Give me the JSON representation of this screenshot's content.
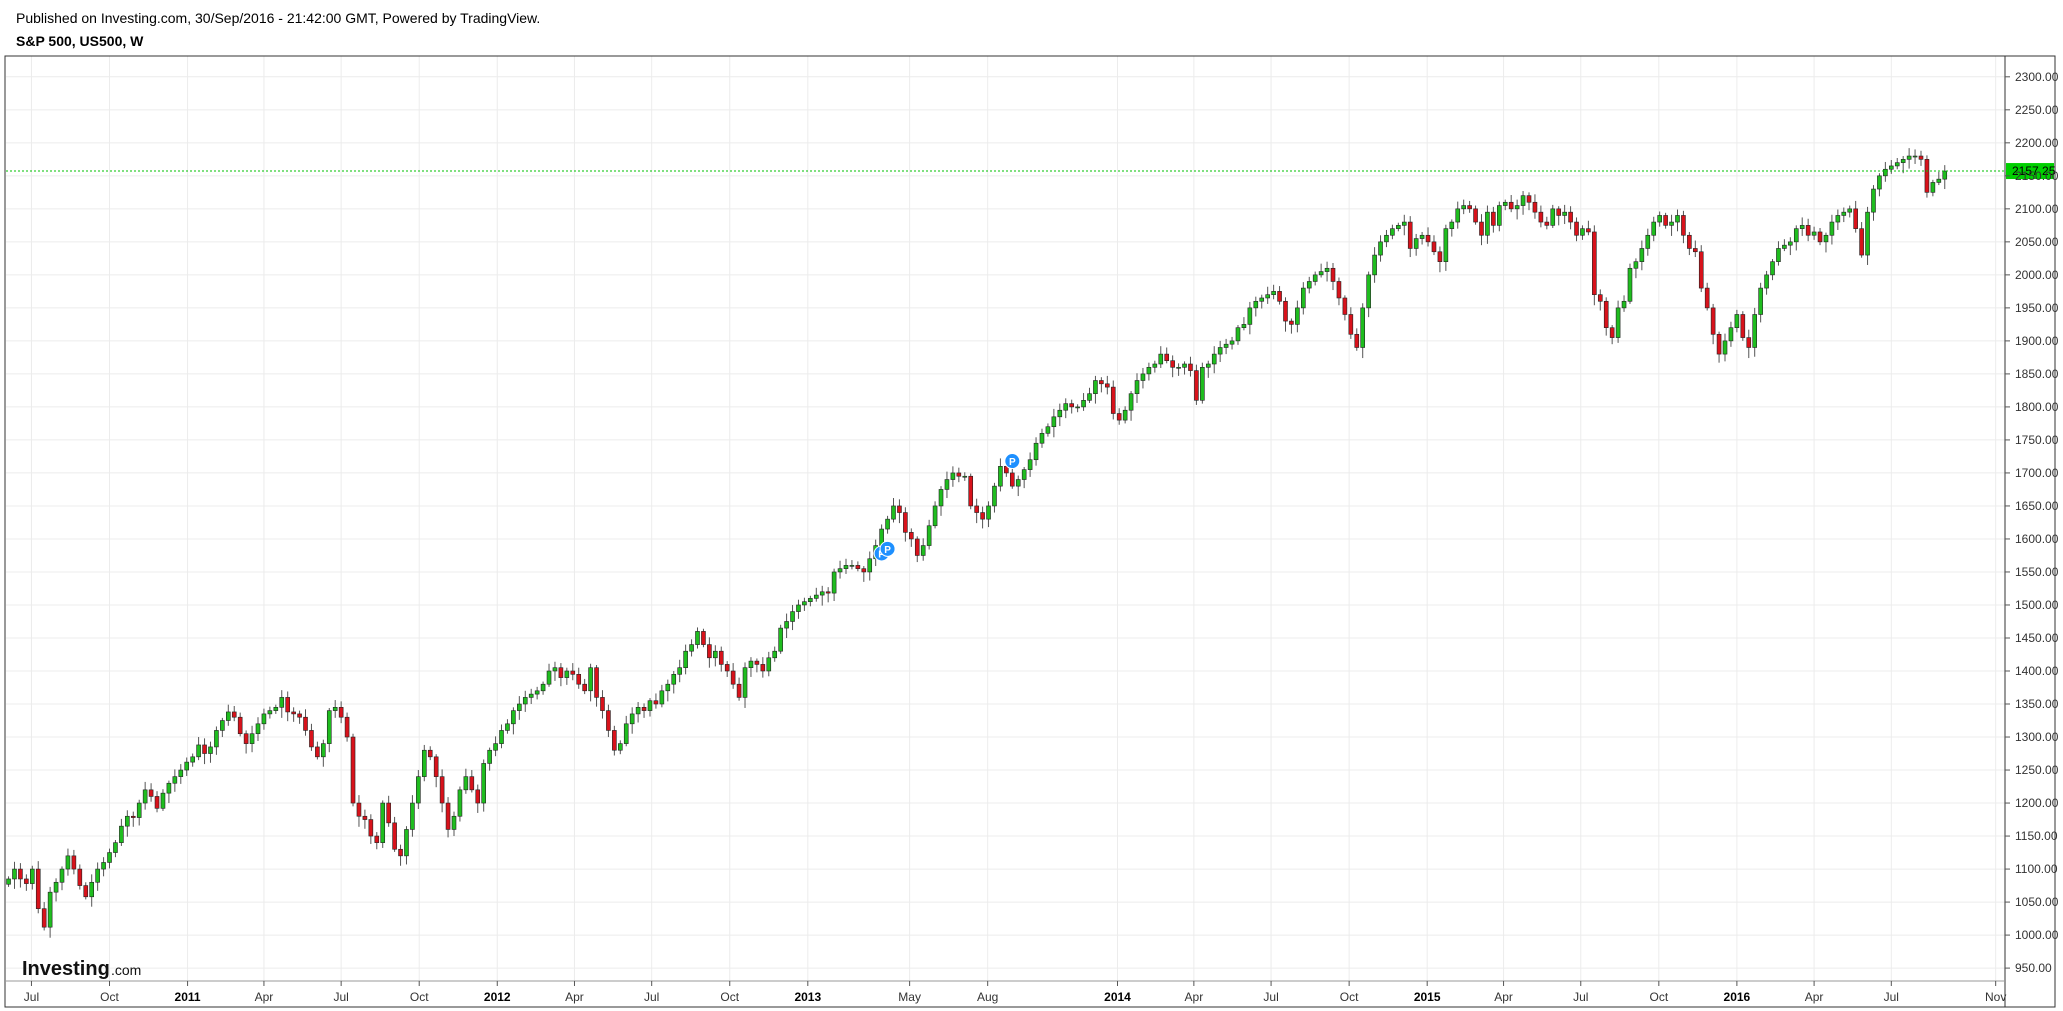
{
  "header": {
    "publish_line": "Published on Investing.com, 30/Sep/2016 - 21:42:00 GMT, Powered by TradingView.",
    "chart_title": "S&P 500, US500, W"
  },
  "logo": {
    "brand": "Investing",
    "suffix": ".com"
  },
  "colors": {
    "up": "#1fbd1f",
    "down": "#d8121b",
    "last_price_line": "#00c000",
    "last_price_label_bg": "#00d000",
    "marker": "#1e90ff",
    "grid": "#ececec",
    "frame": "#333333"
  },
  "chart_data": {
    "type": "candlestick",
    "title": "S&P 500, US500, W",
    "interval": "weekly",
    "ylim": [
      935,
      2330
    ],
    "y_ticks": [
      950,
      1000,
      1050,
      1100,
      1150,
      1200,
      1250,
      1300,
      1350,
      1400,
      1450,
      1500,
      1550,
      1600,
      1650,
      1700,
      1750,
      1800,
      1850,
      1900,
      1950,
      2000,
      2050,
      2100,
      2150,
      2200,
      2250,
      2300
    ],
    "y_tick_labels": [
      "950.00",
      "1000.00",
      "1050.00",
      "1100.00",
      "1150.00",
      "1200.00",
      "1250.00",
      "1300.00",
      "1350.00",
      "1400.00",
      "1450.00",
      "1500.00",
      "1550.00",
      "1600.00",
      "1650.00",
      "1700.00",
      "1750.00",
      "1800.00",
      "1850.00",
      "1900.00",
      "1950.00",
      "2000.00",
      "2050.00",
      "2100.00",
      "2150.00",
      "2200.00",
      "2250.00",
      "2300.00"
    ],
    "x_range": [
      "2010-06-01",
      "2016-11-12"
    ],
    "x_ticks": [
      {
        "date": "2010-07-01",
        "label": "Jul",
        "year": false
      },
      {
        "date": "2010-10-01",
        "label": "Oct",
        "year": false
      },
      {
        "date": "2011-01-01",
        "label": "2011",
        "year": true
      },
      {
        "date": "2011-04-01",
        "label": "Apr",
        "year": false
      },
      {
        "date": "2011-07-01",
        "label": "Jul",
        "year": false
      },
      {
        "date": "2011-10-01",
        "label": "Oct",
        "year": false
      },
      {
        "date": "2012-01-01",
        "label": "2012",
        "year": true
      },
      {
        "date": "2012-04-01",
        "label": "Apr",
        "year": false
      },
      {
        "date": "2012-07-01",
        "label": "Jul",
        "year": false
      },
      {
        "date": "2012-10-01",
        "label": "Oct",
        "year": false
      },
      {
        "date": "2013-01-01",
        "label": "2013",
        "year": true
      },
      {
        "date": "2013-05-01",
        "label": "May",
        "year": false
      },
      {
        "date": "2013-08-01",
        "label": "Aug",
        "year": false
      },
      {
        "date": "2014-01-01",
        "label": "2014",
        "year": true
      },
      {
        "date": "2014-04-01",
        "label": "Apr",
        "year": false
      },
      {
        "date": "2014-07-01",
        "label": "Jul",
        "year": false
      },
      {
        "date": "2014-10-01",
        "label": "Oct",
        "year": false
      },
      {
        "date": "2015-01-01",
        "label": "2015",
        "year": true
      },
      {
        "date": "2015-04-01",
        "label": "Apr",
        "year": false
      },
      {
        "date": "2015-07-01",
        "label": "Jul",
        "year": false
      },
      {
        "date": "2015-10-01",
        "label": "Oct",
        "year": false
      },
      {
        "date": "2016-01-01",
        "label": "2016",
        "year": true
      },
      {
        "date": "2016-04-01",
        "label": "Apr",
        "year": false
      },
      {
        "date": "2016-07-01",
        "label": "Jul",
        "year": false
      },
      {
        "date": "2016-11-01",
        "label": "Nov",
        "year": false
      }
    ],
    "series_start": "2010-06-04",
    "interval_days": 7,
    "closes": [
      1085,
      1100,
      1085,
      1078,
      1100,
      1040,
      1012,
      1065,
      1080,
      1100,
      1120,
      1100,
      1075,
      1058,
      1080,
      1100,
      1110,
      1125,
      1140,
      1165,
      1180,
      1178,
      1200,
      1220,
      1210,
      1192,
      1215,
      1230,
      1240,
      1250,
      1262,
      1270,
      1288,
      1275,
      1285,
      1310,
      1325,
      1338,
      1330,
      1305,
      1290,
      1305,
      1320,
      1335,
      1340,
      1345,
      1360,
      1338,
      1335,
      1330,
      1310,
      1285,
      1270,
      1290,
      1340,
      1345,
      1330,
      1300,
      1200,
      1180,
      1175,
      1150,
      1140,
      1200,
      1170,
      1130,
      1120,
      1160,
      1200,
      1240,
      1280,
      1270,
      1240,
      1200,
      1160,
      1180,
      1220,
      1240,
      1220,
      1200,
      1260,
      1280,
      1290,
      1310,
      1320,
      1340,
      1350,
      1360,
      1365,
      1370,
      1380,
      1400,
      1405,
      1390,
      1400,
      1395,
      1380,
      1370,
      1405,
      1360,
      1340,
      1310,
      1280,
      1290,
      1320,
      1335,
      1345,
      1340,
      1355,
      1350,
      1370,
      1380,
      1395,
      1405,
      1430,
      1440,
      1460,
      1440,
      1420,
      1430,
      1410,
      1400,
      1380,
      1360,
      1405,
      1415,
      1410,
      1400,
      1420,
      1430,
      1465,
      1475,
      1490,
      1500,
      1505,
      1510,
      1515,
      1520,
      1518,
      1550,
      1555,
      1560,
      1560,
      1555,
      1550,
      1570,
      1590,
      1615,
      1630,
      1650,
      1640,
      1610,
      1600,
      1575,
      1590,
      1620,
      1650,
      1675,
      1690,
      1700,
      1695,
      1695,
      1650,
      1640,
      1630,
      1650,
      1680,
      1710,
      1700,
      1680,
      1690,
      1705,
      1720,
      1745,
      1760,
      1770,
      1785,
      1795,
      1805,
      1800,
      1800,
      1810,
      1820,
      1840,
      1835,
      1830,
      1790,
      1780,
      1795,
      1820,
      1840,
      1850,
      1860,
      1865,
      1880,
      1870,
      1860,
      1860,
      1865,
      1855,
      1810,
      1860,
      1865,
      1880,
      1890,
      1895,
      1900,
      1920,
      1925,
      1950,
      1960,
      1965,
      1970,
      1975,
      1960,
      1930,
      1925,
      1950,
      1980,
      1990,
      2000,
      2005,
      2010,
      1990,
      1965,
      1940,
      1910,
      1890,
      1950,
      2000,
      2030,
      2050,
      2060,
      2070,
      2075,
      2080,
      2040,
      2055,
      2060,
      2050,
      2035,
      2020,
      2070,
      2080,
      2100,
      2105,
      2100,
      2080,
      2060,
      2095,
      2075,
      2105,
      2110,
      2100,
      2105,
      2120,
      2110,
      2095,
      2080,
      2075,
      2100,
      2090,
      2095,
      2080,
      2060,
      2070,
      2065,
      1970,
      1960,
      1920,
      1905,
      1950,
      1960,
      2010,
      2020,
      2040,
      2060,
      2080,
      2090,
      2075,
      2080,
      2090,
      2060,
      2040,
      2035,
      1980,
      1950,
      1910,
      1880,
      1900,
      1920,
      1940,
      1905,
      1890,
      1940,
      1980,
      2000,
      2020,
      2040,
      2045,
      2050,
      2070,
      2075,
      2060,
      2065,
      2050,
      2060,
      2080,
      2090,
      2095,
      2100,
      2070,
      2030,
      2095,
      2130,
      2150,
      2160,
      2165,
      2170,
      2175,
      2180,
      2180,
      2175,
      2125,
      2140,
      2145,
      2157.25
    ],
    "last_price": 2157.25,
    "last_price_label": "2157.25",
    "markers": [
      {
        "date": "2013-03-29",
        "price": 1578,
        "label": "P"
      },
      {
        "date": "2013-04-05",
        "price": 1585,
        "label": "P"
      },
      {
        "date": "2013-08-30",
        "price": 1718,
        "label": "P"
      }
    ]
  }
}
